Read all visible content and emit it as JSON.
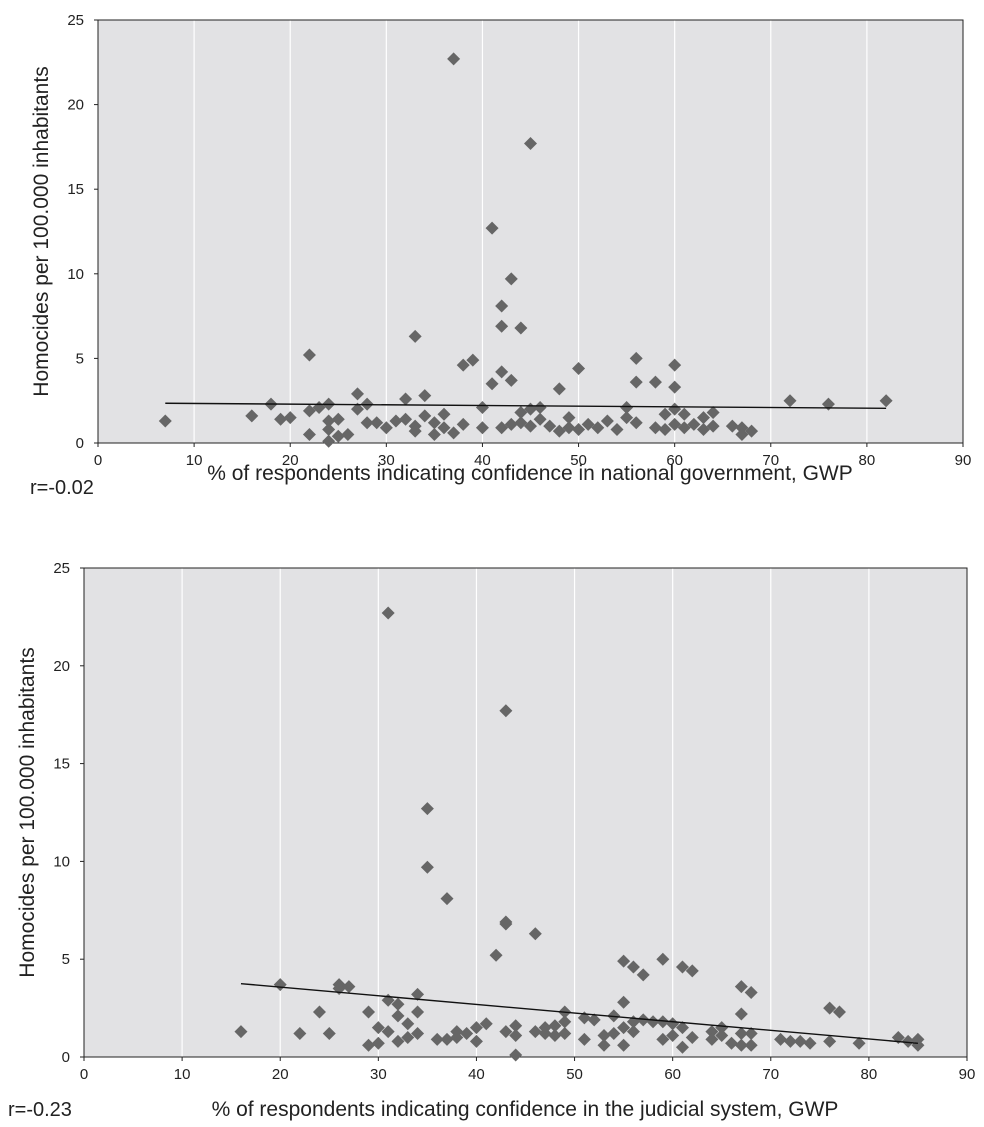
{
  "chart_data": [
    {
      "type": "scatter",
      "title": "",
      "xlabel": "% of respondents indicating confidence in national government, GWP",
      "ylabel": "Homocides per 100.000 inhabitants",
      "annotation": "r=-0.02",
      "xlim": [
        0,
        90
      ],
      "ylim": [
        0,
        25
      ],
      "x_ticks": [
        0,
        10,
        20,
        30,
        40,
        50,
        60,
        70,
        80,
        90
      ],
      "y_ticks": [
        0,
        5,
        10,
        15,
        20,
        25
      ],
      "grid": "vertical",
      "marker": "diamond",
      "marker_color": "#666666",
      "plot_background": "#e2e2e4",
      "trendline": [
        [
          7,
          2.35
        ],
        [
          82,
          2.05
        ]
      ],
      "points": [
        [
          7,
          1.3
        ],
        [
          16,
          1.6
        ],
        [
          18,
          2.3
        ],
        [
          19,
          1.4
        ],
        [
          20,
          1.5
        ],
        [
          22,
          5.2
        ],
        [
          22,
          0.5
        ],
        [
          22,
          1.9
        ],
        [
          23,
          2.1
        ],
        [
          24,
          2.3
        ],
        [
          24,
          1.3
        ],
        [
          24,
          0.1
        ],
        [
          24,
          0.8
        ],
        [
          25,
          1.4
        ],
        [
          25,
          0.4
        ],
        [
          26,
          0.5
        ],
        [
          27,
          2.9
        ],
        [
          27,
          2.0
        ],
        [
          28,
          2.3
        ],
        [
          28,
          1.2
        ],
        [
          29,
          1.2
        ],
        [
          30,
          0.9
        ],
        [
          31,
          1.3
        ],
        [
          32,
          2.6
        ],
        [
          32,
          1.4
        ],
        [
          33,
          6.3
        ],
        [
          33,
          1.0
        ],
        [
          33,
          0.7
        ],
        [
          34,
          2.8
        ],
        [
          34,
          1.6
        ],
        [
          35,
          1.2
        ],
        [
          35,
          0.5
        ],
        [
          36,
          1.7
        ],
        [
          36,
          0.9
        ],
        [
          37,
          22.7
        ],
        [
          37,
          0.6
        ],
        [
          38,
          4.6
        ],
        [
          38,
          1.1
        ],
        [
          39,
          4.9
        ],
        [
          40,
          2.1
        ],
        [
          40,
          0.9
        ],
        [
          41,
          12.7
        ],
        [
          41,
          3.5
        ],
        [
          42,
          8.1
        ],
        [
          42,
          6.9
        ],
        [
          42,
          4.2
        ],
        [
          42,
          0.9
        ],
        [
          43,
          9.7
        ],
        [
          43,
          3.7
        ],
        [
          43,
          1.1
        ],
        [
          44,
          6.8
        ],
        [
          44,
          1.8
        ],
        [
          44,
          1.2
        ],
        [
          45,
          17.7
        ],
        [
          45,
          2.0
        ],
        [
          45,
          1.0
        ],
        [
          46,
          2.1
        ],
        [
          46,
          1.4
        ],
        [
          47,
          1.0
        ],
        [
          48,
          3.2
        ],
        [
          48,
          0.7
        ],
        [
          49,
          1.5
        ],
        [
          49,
          0.9
        ],
        [
          50,
          4.4
        ],
        [
          50,
          0.8
        ],
        [
          51,
          1.1
        ],
        [
          52,
          0.9
        ],
        [
          53,
          1.3
        ],
        [
          54,
          0.8
        ],
        [
          55,
          2.1
        ],
        [
          55,
          1.5
        ],
        [
          56,
          5.0
        ],
        [
          56,
          3.6
        ],
        [
          56,
          1.2
        ],
        [
          58,
          3.6
        ],
        [
          58,
          0.9
        ],
        [
          59,
          1.7
        ],
        [
          59,
          0.8
        ],
        [
          60,
          4.6
        ],
        [
          60,
          3.3
        ],
        [
          60,
          2.0
        ],
        [
          60,
          1.1
        ],
        [
          61,
          1.7
        ],
        [
          61,
          0.9
        ],
        [
          62,
          1.1
        ],
        [
          63,
          1.5
        ],
        [
          63,
          0.8
        ],
        [
          64,
          1.8
        ],
        [
          64,
          1.0
        ],
        [
          66,
          1.0
        ],
        [
          67,
          0.9
        ],
        [
          67,
          0.5
        ],
        [
          68,
          0.7
        ],
        [
          72,
          2.5
        ],
        [
          76,
          2.3
        ],
        [
          82,
          2.5
        ]
      ]
    },
    {
      "type": "scatter",
      "title": "",
      "xlabel": "% of respondents indicating confidence in the judicial system, GWP",
      "ylabel": "Homocides per 100.000 inhabitants",
      "annotation": "r=-0.23",
      "xlim": [
        0,
        90
      ],
      "ylim": [
        0,
        25
      ],
      "x_ticks": [
        0,
        10,
        20,
        30,
        40,
        50,
        60,
        70,
        80,
        90
      ],
      "y_ticks": [
        0,
        5,
        10,
        15,
        20,
        25
      ],
      "grid": "vertical",
      "marker": "diamond",
      "marker_color": "#666666",
      "plot_background": "#e2e2e4",
      "trendline": [
        [
          16,
          3.75
        ],
        [
          85,
          0.7
        ]
      ],
      "points": [
        [
          16,
          1.3
        ],
        [
          20,
          3.7
        ],
        [
          22,
          1.2
        ],
        [
          24,
          2.3
        ],
        [
          25,
          1.2
        ],
        [
          26,
          3.7
        ],
        [
          26,
          3.5
        ],
        [
          27,
          3.6
        ],
        [
          29,
          2.3
        ],
        [
          29,
          0.6
        ],
        [
          30,
          1.5
        ],
        [
          30,
          0.7
        ],
        [
          31,
          22.7
        ],
        [
          31,
          2.9
        ],
        [
          31,
          1.3
        ],
        [
          32,
          2.7
        ],
        [
          32,
          2.1
        ],
        [
          32,
          0.8
        ],
        [
          33,
          1.7
        ],
        [
          33,
          1.0
        ],
        [
          34,
          3.2
        ],
        [
          34,
          2.3
        ],
        [
          34,
          1.2
        ],
        [
          35,
          12.7
        ],
        [
          35,
          9.7
        ],
        [
          36,
          0.9
        ],
        [
          37,
          8.1
        ],
        [
          37,
          0.9
        ],
        [
          38,
          1.3
        ],
        [
          38,
          1.0
        ],
        [
          39,
          1.2
        ],
        [
          40,
          1.5
        ],
        [
          40,
          0.8
        ],
        [
          41,
          1.7
        ],
        [
          42,
          5.2
        ],
        [
          43,
          17.7
        ],
        [
          43,
          6.9
        ],
        [
          43,
          6.8
        ],
        [
          43,
          1.3
        ],
        [
          44,
          1.6
        ],
        [
          44,
          1.1
        ],
        [
          44,
          0.1
        ],
        [
          46,
          6.3
        ],
        [
          46,
          1.3
        ],
        [
          47,
          1.2
        ],
        [
          47,
          1.5
        ],
        [
          48,
          1.1
        ],
        [
          48,
          1.6
        ],
        [
          49,
          2.3
        ],
        [
          49,
          1.8
        ],
        [
          49,
          1.2
        ],
        [
          51,
          2.0
        ],
        [
          51,
          0.9
        ],
        [
          52,
          1.9
        ],
        [
          53,
          1.1
        ],
        [
          53,
          0.6
        ],
        [
          54,
          1.2
        ],
        [
          54,
          2.1
        ],
        [
          55,
          4.9
        ],
        [
          55,
          2.8
        ],
        [
          55,
          1.5
        ],
        [
          55,
          0.6
        ],
        [
          56,
          4.6
        ],
        [
          56,
          1.8
        ],
        [
          56,
          1.3
        ],
        [
          57,
          4.2
        ],
        [
          57,
          1.9
        ],
        [
          58,
          1.8
        ],
        [
          59,
          5.0
        ],
        [
          59,
          1.8
        ],
        [
          59,
          0.9
        ],
        [
          60,
          1.7
        ],
        [
          60,
          1.1
        ],
        [
          61,
          4.6
        ],
        [
          61,
          1.5
        ],
        [
          61,
          0.5
        ],
        [
          62,
          4.4
        ],
        [
          62,
          1.0
        ],
        [
          64,
          1.3
        ],
        [
          64,
          0.9
        ],
        [
          65,
          1.5
        ],
        [
          65,
          1.1
        ],
        [
          66,
          0.7
        ],
        [
          67,
          3.6
        ],
        [
          67,
          2.2
        ],
        [
          67,
          1.2
        ],
        [
          67,
          0.6
        ],
        [
          68,
          3.3
        ],
        [
          68,
          1.2
        ],
        [
          68,
          0.6
        ],
        [
          71,
          0.9
        ],
        [
          72,
          0.8
        ],
        [
          73,
          0.8
        ],
        [
          74,
          0.7
        ],
        [
          76,
          2.5
        ],
        [
          76,
          0.8
        ],
        [
          77,
          2.3
        ],
        [
          79,
          0.7
        ],
        [
          83,
          1.0
        ],
        [
          84,
          0.8
        ],
        [
          85,
          0.9
        ],
        [
          85,
          0.6
        ]
      ]
    }
  ]
}
